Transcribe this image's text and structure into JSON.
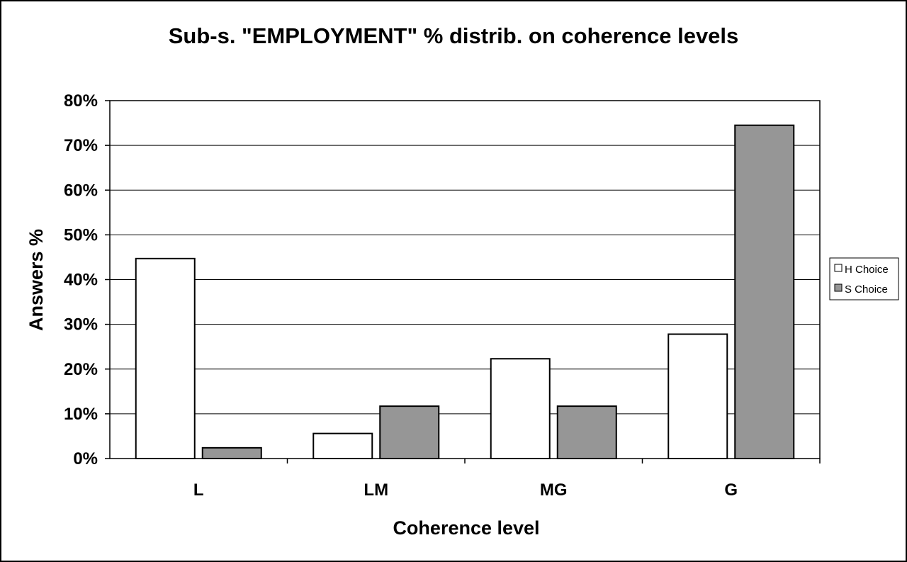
{
  "chart_data": {
    "type": "bar",
    "title": "Sub-s. \"EMPLOYMENT\" % distrib. on coherence levels",
    "xlabel": "Coherence level",
    "ylabel": "Answers %",
    "categories": [
      "L",
      "LM",
      "MG",
      "G"
    ],
    "series": [
      {
        "name": "H Choice",
        "values": [
          44.7,
          5.6,
          22.3,
          27.8
        ],
        "color": "#ffffff"
      },
      {
        "name": "S Choice",
        "values": [
          2.4,
          11.7,
          11.7,
          74.5
        ],
        "color": "#969696"
      }
    ],
    "ylim": [
      0,
      80
    ],
    "yticks": [
      "0%",
      "10%",
      "20%",
      "30%",
      "40%",
      "50%",
      "60%",
      "70%",
      "80%"
    ],
    "grid": true,
    "legend": "right"
  }
}
